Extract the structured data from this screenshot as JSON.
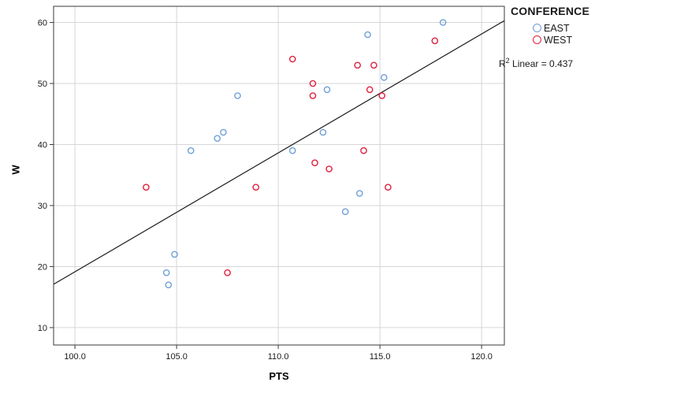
{
  "chart_data": {
    "type": "scatter",
    "title": "",
    "xlabel": "PTS",
    "ylabel": "W",
    "xlim": [
      98.95,
      121.12
    ],
    "ylim": [
      7.15,
      62.65
    ],
    "grid": true,
    "legend_position": "top-right-outside",
    "x_ticks": [
      {
        "value": 100,
        "label": "100.0"
      },
      {
        "value": 105,
        "label": "105.0"
      },
      {
        "value": 110,
        "label": "110.0"
      },
      {
        "value": 115,
        "label": "115.0"
      },
      {
        "value": 120,
        "label": "120.0"
      }
    ],
    "y_ticks": [
      {
        "value": 10,
        "label": "10"
      },
      {
        "value": 20,
        "label": "20"
      },
      {
        "value": 30,
        "label": "30"
      },
      {
        "value": 40,
        "label": "40"
      },
      {
        "value": 50,
        "label": "50"
      },
      {
        "value": 60,
        "label": "60"
      }
    ],
    "series": [
      {
        "name": "EAST",
        "color": "#6EA0D7",
        "points": [
          [
            118.1,
            60
          ],
          [
            114.4,
            58
          ],
          [
            115.2,
            51
          ],
          [
            112.4,
            49
          ],
          [
            108.0,
            48
          ],
          [
            112.2,
            42
          ],
          [
            107.3,
            42
          ],
          [
            107.0,
            41
          ],
          [
            110.7,
            39
          ],
          [
            105.7,
            39
          ],
          [
            114.0,
            32
          ],
          [
            113.3,
            29
          ],
          [
            104.9,
            22
          ],
          [
            104.5,
            19
          ],
          [
            104.6,
            17
          ]
        ]
      },
      {
        "name": "WEST",
        "color": "#E11E3C",
        "points": [
          [
            117.7,
            57
          ],
          [
            110.7,
            54
          ],
          [
            113.9,
            53
          ],
          [
            114.7,
            53
          ],
          [
            111.7,
            50
          ],
          [
            114.5,
            49
          ],
          [
            111.7,
            48
          ],
          [
            115.1,
            48
          ],
          [
            114.2,
            39
          ],
          [
            111.8,
            37
          ],
          [
            112.5,
            36
          ],
          [
            103.5,
            33
          ],
          [
            115.4,
            33
          ],
          [
            108.9,
            33
          ],
          [
            107.5,
            19
          ]
        ]
      }
    ],
    "fit_line": {
      "x1": 98.95,
      "y1": 17.1,
      "x2": 121.12,
      "y2": 60.3
    },
    "r2_label": "R2 Linear = 0.437"
  },
  "legend": {
    "title": "CONFERENCE",
    "items": [
      {
        "label": "EAST",
        "color": "#6EA0D7"
      },
      {
        "label": "WEST",
        "color": "#E11E3C"
      }
    ],
    "r2_prefix": "R",
    "r2_sup": "2",
    "r2_rest": " Linear = 0.437"
  }
}
